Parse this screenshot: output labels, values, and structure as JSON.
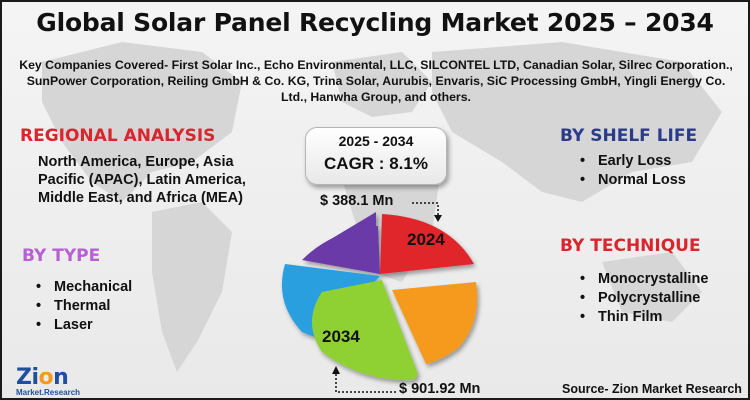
{
  "title": "Global Solar Panel Recycling Market 2025 – 2034",
  "companies": "Key Companies Covered- First Solar Inc., Echo Environmental, LLC, SILCONTEL LTD, Canadian Solar, Silrec Corporation., SunPower Corporation, Reiling GmbH & Co. KG, Trina Solar, Aurubis, Envaris, SiC Processing GmbH, Yingli Energy Co. Ltd., Hanwha Group, and others.",
  "regional": {
    "heading": "REGIONAL ANALYSIS",
    "text": "North America, Europe, Asia Pacific (APAC), Latin America, Middle East, and Africa (MEA)"
  },
  "by_type": {
    "heading": "BY TYPE",
    "items": [
      "Mechanical",
      "Thermal",
      "Laser"
    ]
  },
  "by_shelf_life": {
    "heading": "BY SHELF LIFE",
    "items": [
      "Early Loss",
      "Normal Loss"
    ]
  },
  "by_technique": {
    "heading": "BY TECHNIQUE",
    "items": [
      "Monocrystalline",
      "Polycrystalline",
      "Thin Film"
    ]
  },
  "cagr_box": {
    "period": "2025 - 2034",
    "cagr": "CAGR : 8.1%"
  },
  "market_values": {
    "value_2024": "$ 388.1 Mn",
    "value_2034": "$ 901.92 Mn",
    "label_2024": "2024",
    "label_2034": "2034"
  },
  "pie_colors": {
    "red": "#e0262b",
    "orange": "#f59a1c",
    "green": "#8fd130",
    "blue": "#2c9fe0",
    "purple": "#6b3aa8"
  },
  "logo": {
    "main_a": "Zi",
    "main_b": "o",
    "main_c": "n",
    "sub": "Market.Research"
  },
  "source": "Source- Zion Market Research"
}
